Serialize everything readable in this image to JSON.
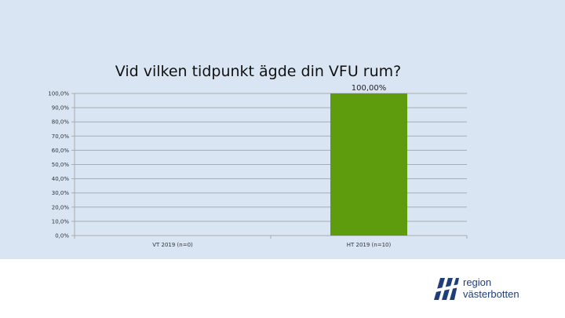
{
  "slide": {
    "background_top": "#d9e5f3",
    "background_bottom": "#ffffff"
  },
  "chart_data": {
    "type": "bar",
    "title": "Vid vilken tidpunkt ägde din VFU rum?",
    "categories": [
      "VT 2019 (n=0)",
      "HT 2019 (n=10)"
    ],
    "values": [
      0,
      100
    ],
    "data_labels": [
      "",
      "100,00%"
    ],
    "yticks": [
      "0,0%",
      "10,0%",
      "20,0%",
      "30,0%",
      "40,0%",
      "50,0%",
      "60,0%",
      "70,0%",
      "80,0%",
      "90,0%",
      "100,0%"
    ],
    "ylim": [
      0,
      100
    ],
    "grid": true,
    "bar_color": "#5e9c0e",
    "grid_color": "#ababab"
  },
  "logo": {
    "line1": "region",
    "line2": "västerbotten",
    "color": "#1f3e79"
  }
}
